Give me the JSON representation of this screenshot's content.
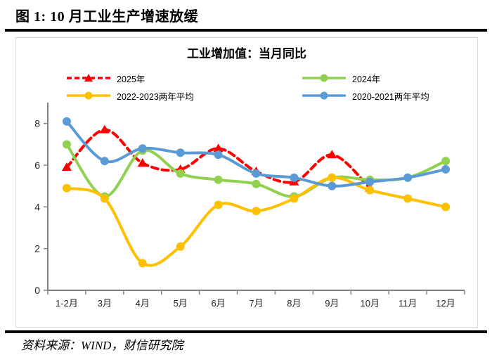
{
  "figure": {
    "title": "图 1: 10 月工业生产增速放缓",
    "source": "资料来源：WIND，财信研究院"
  },
  "chart_data": {
    "type": "line",
    "title": "工业增加值：当月同比",
    "categories": [
      "1-2月",
      "3月",
      "4月",
      "5月",
      "6月",
      "7月",
      "8月",
      "9月",
      "10月",
      "11月",
      "12月"
    ],
    "series": [
      {
        "name": "2025年",
        "color": "#FF0000",
        "marker": "triangle",
        "line_style": "dashed",
        "values": [
          5.9,
          7.7,
          6.1,
          5.8,
          6.8,
          5.7,
          5.2,
          6.5,
          4.9,
          null,
          null
        ]
      },
      {
        "name": "2024年",
        "color": "#92D050",
        "marker": "circle",
        "line_style": "solid",
        "values": [
          7.0,
          4.5,
          6.7,
          5.6,
          5.3,
          5.1,
          4.5,
          5.4,
          5.3,
          5.4,
          6.2
        ]
      },
      {
        "name": "2022-2023两年平均",
        "color": "#FFC000",
        "marker": "circle",
        "line_style": "solid",
        "values": [
          4.9,
          4.4,
          1.3,
          2.1,
          4.1,
          3.8,
          4.4,
          5.4,
          4.8,
          4.4,
          4.0
        ]
      },
      {
        "name": "2020-2021两年平均",
        "color": "#5B9BD5",
        "marker": "circle",
        "line_style": "solid",
        "values": [
          8.1,
          6.2,
          6.8,
          6.6,
          6.5,
          5.6,
          5.4,
          5.0,
          5.2,
          5.4,
          5.8
        ]
      }
    ],
    "xlabel": "",
    "ylabel": "",
    "yticks": [
      0,
      2,
      4,
      6,
      8
    ],
    "ylim": [
      0,
      9
    ],
    "grid": false,
    "legend_position": "top, two columns (row1: 2025年 / 2024年; row2: 2022-2023两年平均 / 2020-2021两年平均)",
    "axis_color": "#808080",
    "tick_label_color": "#262626"
  }
}
